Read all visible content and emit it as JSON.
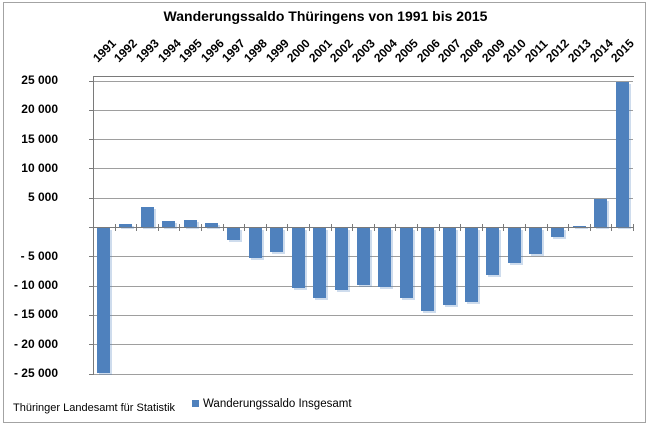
{
  "title": "Wanderungssaldo Thüringens von 1991 bis 2015",
  "source_note": "Thüringer Landesamt für Statistik",
  "legend": {
    "label": "Wanderungssaldo Insgesamt",
    "marker_color": "#4f81bd"
  },
  "colors": {
    "bar": "#4f81bd",
    "bar_shadow": "rgba(79,129,189,0.28)",
    "gridline": "#9e9e9e",
    "axis": "#7a7a7a",
    "frame_border": "#a3a3a3",
    "text": "#000000"
  },
  "chart_data": {
    "type": "bar",
    "title": "Wanderungssaldo Thüringens von 1991 bis 2015",
    "xlabel": "",
    "ylabel": "",
    "categories": [
      "1991",
      "1992",
      "1993",
      "1994",
      "1995",
      "1996",
      "1997",
      "1998",
      "1999",
      "2000",
      "2001",
      "2002",
      "2003",
      "2004",
      "2005",
      "2006",
      "2007",
      "2008",
      "2009",
      "2010",
      "2011",
      "2012",
      "2013",
      "2014",
      "2015"
    ],
    "series": [
      {
        "name": "Wanderungssaldo Insgesamt",
        "values": [
          -24800,
          500,
          3400,
          1100,
          1200,
          600,
          -2000,
          -5100,
          -4100,
          -10200,
          -12000,
          -10600,
          -9700,
          -10000,
          -11900,
          -14200,
          -13100,
          -12700,
          -8100,
          -5900,
          -4400,
          -1600,
          100,
          4800,
          24700
        ]
      }
    ],
    "ylim": [
      -25000,
      26000
    ],
    "ytick_interval": 5000,
    "y_ticks": [
      {
        "label": "25 000",
        "value": 25000
      },
      {
        "label": "20 000",
        "value": 20000
      },
      {
        "label": "15 000",
        "value": 15000
      },
      {
        "label": "10 000",
        "value": 10000
      },
      {
        "label": "5 000",
        "value": 5000
      },
      {
        "label": "- 5 000",
        "value": -5000
      },
      {
        "label": "- 10 000",
        "value": -10000
      },
      {
        "label": "- 15 000",
        "value": -15000
      },
      {
        "label": "- 20 000",
        "value": -20000
      },
      {
        "label": "- 25 000",
        "value": -25000
      }
    ],
    "grid": true,
    "legend_position": "bottom",
    "x_labels_position": "top",
    "x_labels_rotation": -45
  }
}
